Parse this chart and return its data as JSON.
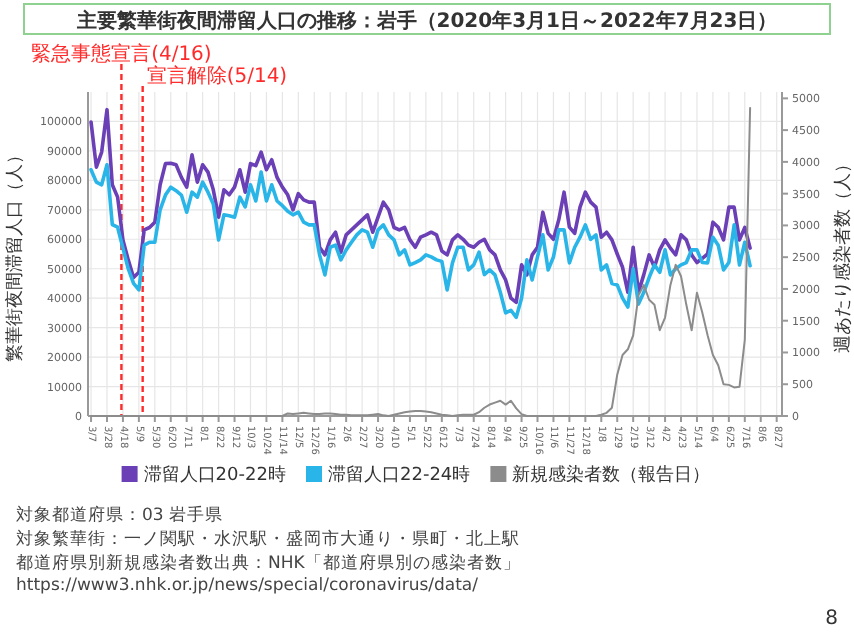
{
  "chart_data": {
    "type": "line",
    "title": "主要繁華街夜間滞留人口の推移：岩手（2020年3月1日～2022年7月23日）",
    "ylabel": "繁華街夜間滞留人口（人）",
    "y2label": "週あたり感染者数（人）",
    "x": [
      "2020-03-07",
      "2020-03-14",
      "2020-03-21",
      "2020-03-28",
      "2020-04-04",
      "2020-04-11",
      "2020-04-18",
      "2020-04-25",
      "2020-05-02",
      "2020-05-09",
      "2020-05-16",
      "2020-05-23",
      "2020-05-30",
      "2020-06-06",
      "2020-06-13",
      "2020-06-20",
      "2020-06-27",
      "2020-07-04",
      "2020-07-11",
      "2020-07-18",
      "2020-07-25",
      "2020-08-01",
      "2020-08-08",
      "2020-08-15",
      "2020-08-22",
      "2020-08-29",
      "2020-09-05",
      "2020-09-12",
      "2020-09-19",
      "2020-09-26",
      "2020-10-03",
      "2020-10-10",
      "2020-10-17",
      "2020-10-24",
      "2020-10-31",
      "2020-11-07",
      "2020-11-14",
      "2020-11-21",
      "2020-11-28",
      "2020-12-05",
      "2020-12-12",
      "2020-12-19",
      "2020-12-26",
      "2021-01-02",
      "2021-01-09",
      "2021-01-16",
      "2021-01-23",
      "2021-01-30",
      "2021-02-06",
      "2021-02-13",
      "2021-02-20",
      "2021-02-27",
      "2021-03-06",
      "2021-03-13",
      "2021-03-20",
      "2021-03-27",
      "2021-04-03",
      "2021-04-10",
      "2021-04-17",
      "2021-04-24",
      "2021-05-01",
      "2021-05-08",
      "2021-05-15",
      "2021-05-22",
      "2021-05-29",
      "2021-06-05",
      "2021-06-12",
      "2021-06-19",
      "2021-06-26",
      "2021-07-03",
      "2021-07-10",
      "2021-07-17",
      "2021-07-24",
      "2021-07-31",
      "2021-08-07",
      "2021-08-14",
      "2021-08-21",
      "2021-08-28",
      "2021-09-04",
      "2021-09-11",
      "2021-09-18",
      "2021-09-25",
      "2021-10-02",
      "2021-10-09",
      "2021-10-16",
      "2021-10-23",
      "2021-10-30",
      "2021-11-06",
      "2021-11-13",
      "2021-11-20",
      "2021-11-27",
      "2021-12-04",
      "2021-12-11",
      "2021-12-18",
      "2021-12-25",
      "2022-01-01",
      "2022-01-08",
      "2022-01-15",
      "2022-01-22",
      "2022-01-29",
      "2022-02-05",
      "2022-02-12",
      "2022-02-19",
      "2022-02-26",
      "2022-03-05",
      "2022-03-12",
      "2022-03-19",
      "2022-03-26",
      "2022-04-02",
      "2022-04-09",
      "2022-04-16",
      "2022-04-23",
      "2022-04-30",
      "2022-05-07",
      "2022-05-14",
      "2022-05-21",
      "2022-05-28",
      "2022-06-04",
      "2022-06-11",
      "2022-06-18",
      "2022-06-25",
      "2022-07-02",
      "2022-07-09",
      "2022-07-16",
      "2022-07-23"
    ],
    "series": [
      {
        "name": "滞留人口20-22時",
        "color": "#6b3fb5",
        "values": [
          99800,
          84500,
          89600,
          104000,
          78500,
          74300,
          59800,
          53000,
          47000,
          48800,
          63200,
          64000,
          65800,
          78500,
          85700,
          85800,
          85300,
          81000,
          77700,
          88700,
          79400,
          85300,
          82800,
          76800,
          67500,
          76800,
          75100,
          77700,
          83600,
          76000,
          85700,
          85000,
          89600,
          83600,
          87000,
          81000,
          77700,
          75100,
          70000,
          75500,
          73400,
          72600,
          72600,
          57300,
          54700,
          59800,
          62400,
          55600,
          61500,
          63200,
          64900,
          66600,
          68300,
          62400,
          67500,
          72600,
          70000,
          64000,
          63200,
          64000,
          59800,
          57300,
          60700,
          61500,
          62400,
          61500,
          56000,
          54700,
          59800,
          61500,
          60000,
          58000,
          57300,
          59000,
          60000,
          56400,
          54700,
          49600,
          46200,
          40000,
          38600,
          51300,
          47900,
          54700,
          57300,
          69200,
          62000,
          60000,
          66600,
          76000,
          64100,
          62000,
          70900,
          76000,
          72600,
          70900,
          60700,
          62400,
          59800,
          55000,
          50500,
          42000,
          57300,
          42000,
          48000,
          54700,
          50500,
          56400,
          59800,
          57000,
          54700,
          61500,
          59800,
          54700,
          52100,
          53500,
          55000,
          65800,
          64100,
          59800,
          70900,
          70900,
          59800,
          64000,
          57000
        ]
      },
      {
        "name": "滞留人口22-24時",
        "color": "#29b5e8",
        "values": [
          83600,
          79400,
          78500,
          85300,
          65000,
          64100,
          57000,
          50000,
          45000,
          42800,
          58000,
          59000,
          59000,
          70000,
          75000,
          77700,
          76500,
          75000,
          69200,
          76000,
          74300,
          79400,
          76000,
          72000,
          59800,
          68300,
          68000,
          67500,
          74300,
          71000,
          78500,
          73000,
          82800,
          73000,
          78500,
          73000,
          71400,
          69500,
          68300,
          69200,
          65800,
          64900,
          64900,
          54700,
          47900,
          57300,
          58000,
          53000,
          56400,
          59000,
          61500,
          63200,
          62400,
          57300,
          63200,
          64900,
          61500,
          59800,
          54700,
          56400,
          51300,
          52100,
          53000,
          54700,
          54000,
          53000,
          52500,
          42800,
          52000,
          57300,
          57300,
          49600,
          51300,
          55600,
          48000,
          49600,
          47900,
          42000,
          35000,
          35900,
          33500,
          40000,
          53000,
          46200,
          54000,
          61500,
          49600,
          54000,
          63200,
          63200,
          52000,
          57300,
          60700,
          64900,
          60000,
          61500,
          49600,
          51300,
          45000,
          44500,
          40000,
          37000,
          50000,
          38000,
          42000,
          47000,
          51300,
          48800,
          56400,
          47900,
          50000,
          51300,
          52100,
          56400,
          56400,
          52100,
          52000,
          60700,
          58000,
          49600,
          52100,
          64900,
          51300,
          59000,
          51000
        ]
      },
      {
        "name": "新規感染者数（報告日）",
        "color": "#8c8c8c",
        "axis": "y2",
        "values": [
          0,
          0,
          0,
          0,
          0,
          0,
          0,
          0,
          0,
          0,
          0,
          0,
          0,
          0,
          0,
          0,
          0,
          0,
          0,
          0,
          0,
          0,
          0,
          0,
          0,
          0,
          0,
          0,
          0,
          0,
          0,
          0,
          0,
          0,
          0,
          0,
          0,
          40,
          30,
          40,
          50,
          40,
          30,
          30,
          40,
          40,
          30,
          20,
          20,
          10,
          10,
          10,
          10,
          20,
          30,
          10,
          0,
          20,
          40,
          60,
          70,
          80,
          80,
          70,
          60,
          40,
          20,
          10,
          0,
          10,
          20,
          20,
          20,
          60,
          130,
          180,
          210,
          240,
          180,
          240,
          120,
          30,
          0,
          0,
          0,
          0,
          0,
          0,
          0,
          0,
          0,
          0,
          0,
          0,
          0,
          0,
          20,
          50,
          130,
          650,
          960,
          1050,
          1270,
          1900,
          2060,
          1830,
          1750,
          1350,
          1550,
          2060,
          2380,
          2200,
          1750,
          1350,
          1940,
          1630,
          1270,
          960,
          800,
          500,
          490,
          450,
          460,
          1200,
          4850
        ]
      }
    ],
    "xlim": [
      "2020-03-03",
      "2022-09-03"
    ],
    "xticks": [
      {
        "value": "2020-03-07",
        "label": "3/7"
      },
      {
        "value": "2020-03-28",
        "label": "3/28"
      },
      {
        "value": "2020-04-18",
        "label": "4/18"
      },
      {
        "value": "2020-05-09",
        "label": "5/9"
      },
      {
        "value": "2020-05-30",
        "label": "5/30"
      },
      {
        "value": "2020-06-20",
        "label": "6/20"
      },
      {
        "value": "2020-07-11",
        "label": "7/11"
      },
      {
        "value": "2020-08-01",
        "label": "8/1"
      },
      {
        "value": "2020-08-22",
        "label": "8/22"
      },
      {
        "value": "2020-09-12",
        "label": "9/12"
      },
      {
        "value": "2020-10-03",
        "label": "10/3"
      },
      {
        "value": "2020-10-24",
        "label": "10/24"
      },
      {
        "value": "2020-11-14",
        "label": "11/14"
      },
      {
        "value": "2020-12-05",
        "label": "12/5"
      },
      {
        "value": "2020-12-26",
        "label": "12/26"
      },
      {
        "value": "2021-01-16",
        "label": "1/16"
      },
      {
        "value": "2021-02-06",
        "label": "2/6"
      },
      {
        "value": "2021-02-27",
        "label": "2/27"
      },
      {
        "value": "2021-03-20",
        "label": "3/20"
      },
      {
        "value": "2021-04-10",
        "label": "4/10"
      },
      {
        "value": "2021-05-01",
        "label": "5/1"
      },
      {
        "value": "2021-05-22",
        "label": "5/22"
      },
      {
        "value": "2021-06-12",
        "label": "6/12"
      },
      {
        "value": "2021-07-03",
        "label": "7/3"
      },
      {
        "value": "2021-07-24",
        "label": "7/24"
      },
      {
        "value": "2021-08-14",
        "label": "8/14"
      },
      {
        "value": "2021-09-04",
        "label": "9/4"
      },
      {
        "value": "2021-09-25",
        "label": "9/25"
      },
      {
        "value": "2021-10-16",
        "label": "10/16"
      },
      {
        "value": "2021-11-06",
        "label": "11/6"
      },
      {
        "value": "2021-11-27",
        "label": "11/27"
      },
      {
        "value": "2021-12-18",
        "label": "12/18"
      },
      {
        "value": "2022-01-08",
        "label": "1/8"
      },
      {
        "value": "2022-01-29",
        "label": "1/29"
      },
      {
        "value": "2022-02-19",
        "label": "2/19"
      },
      {
        "value": "2022-03-12",
        "label": "3/12"
      },
      {
        "value": "2022-04-02",
        "label": "4/2"
      },
      {
        "value": "2022-04-23",
        "label": "4/23"
      },
      {
        "value": "2022-05-14",
        "label": "5/14"
      },
      {
        "value": "2022-06-04",
        "label": "6/4"
      },
      {
        "value": "2022-06-25",
        "label": "6/25"
      },
      {
        "value": "2022-07-16",
        "label": "7/16"
      },
      {
        "value": "2022-08-06",
        "label": "8/6"
      },
      {
        "value": "2022-08-27",
        "label": "8/27"
      }
    ],
    "ylim": [
      0,
      110000
    ],
    "yticks": [
      0,
      10000,
      20000,
      30000,
      40000,
      50000,
      60000,
      70000,
      80000,
      90000,
      100000
    ],
    "y2lim": [
      0,
      5100
    ],
    "y2ticks": [
      0,
      500,
      1000,
      1500,
      2000,
      2500,
      3000,
      3500,
      4000,
      4500,
      5000
    ],
    "grid": true,
    "legend": "bottom",
    "ref_lines": [
      {
        "axis": "x",
        "value": "2020-04-16",
        "label": "緊急事態宣言(4/16)",
        "color": "#ff2a2a",
        "line_style": "dashed"
      },
      {
        "axis": "x",
        "value": "2020-05-14",
        "label": "宣言解除(5/14)",
        "color": "#ff2a2a",
        "line_style": "dashed"
      }
    ],
    "annotations": [
      "対象都道府県：03 岩手県",
      "対象繁華街：一ノ関駅・水沢駅・盛岡市大通り・県町・北上駅",
      "都道府県別新規感染者数出典：NHK「都道府県別の感染者数」 https://www3.nhk.or.jp/news/special/coronavirus/data/",
      "8"
    ]
  }
}
